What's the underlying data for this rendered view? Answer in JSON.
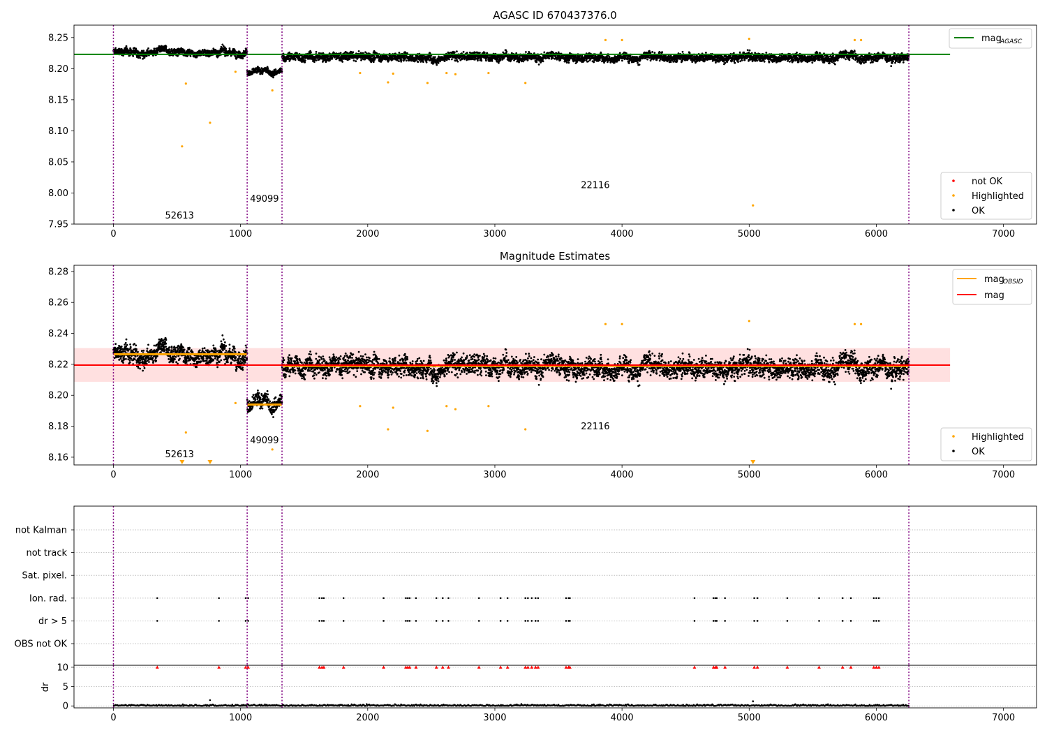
{
  "figure": {
    "ax1_title": "AGASC ID 670437376.0",
    "ax2_title": "Magnitude Estimates"
  },
  "colors": {
    "ok": "#000000",
    "highlighted": "#ffa500",
    "not_ok": "#ff0000",
    "agasc_line": "#008000",
    "obsid_line": "#ffa500",
    "mag_line": "#ff0000",
    "band_fill": "#ffcccc",
    "obs_boundary": "#800080"
  },
  "chart_data": [
    {
      "type": "scatter",
      "xlim": [
        -310,
        7260
      ],
      "ylim": [
        7.95,
        8.27
      ],
      "x_ticks": [
        0,
        1000,
        2000,
        3000,
        4000,
        5000,
        6000,
        7000
      ],
      "y_ticks": [
        "7.95",
        "8.00",
        "8.05",
        "8.10",
        "8.15",
        "8.20",
        "8.25"
      ],
      "legend_upper": [
        {
          "label": "mag",
          "sub": "AGASC",
          "marker": "line",
          "color": "#008000"
        }
      ],
      "legend_lower": [
        {
          "label": "not OK",
          "color": "#ff0000"
        },
        {
          "label": "Highlighted",
          "color": "#ffa500"
        },
        {
          "label": "OK",
          "color": "#000000"
        }
      ],
      "hlines": [
        {
          "name": "mag_AGASC",
          "y": 8.223,
          "x_from": -310,
          "x_to": 6580,
          "color": "#008000"
        }
      ],
      "obs_boundaries": [
        0,
        1052,
        1326,
        6256
      ],
      "obs_labels": [
        {
          "text": "52613",
          "x": 520,
          "y": 7.959
        },
        {
          "text": "49099",
          "x": 1188,
          "y": 7.986
        },
        {
          "text": "22116",
          "x": 3790,
          "y": 8.008
        }
      ],
      "ok_segments": [
        {
          "x_from": 0,
          "x_to": 1052,
          "mean": 8.227,
          "spread": 0.007
        },
        {
          "x_from": 1052,
          "x_to": 1326,
          "mean": 8.194,
          "spread": 0.006
        },
        {
          "x_from": 1326,
          "x_to": 6256,
          "mean": 8.219,
          "spread": 0.008
        }
      ],
      "highlighted_points": [
        [
          540,
          8.075
        ],
        [
          570,
          8.176
        ],
        [
          760,
          8.113
        ],
        [
          960,
          8.195
        ],
        [
          1250,
          8.165
        ],
        [
          1940,
          8.193
        ],
        [
          2160,
          8.178
        ],
        [
          2200,
          8.192
        ],
        [
          2470,
          8.177
        ],
        [
          2620,
          8.193
        ],
        [
          2690,
          8.191
        ],
        [
          2950,
          8.193
        ],
        [
          3240,
          8.177
        ],
        [
          3870,
          8.246
        ],
        [
          4000,
          8.246
        ],
        [
          5000,
          8.248
        ],
        [
          5030,
          7.98
        ],
        [
          5830,
          8.246
        ],
        [
          5880,
          8.246
        ]
      ]
    },
    {
      "type": "scatter",
      "xlim": [
        -310,
        7260
      ],
      "ylim": [
        8.155,
        8.284
      ],
      "x_ticks": [
        0,
        1000,
        2000,
        3000,
        4000,
        5000,
        6000,
        7000
      ],
      "y_ticks": [
        "8.16",
        "8.18",
        "8.20",
        "8.22",
        "8.24",
        "8.26",
        "8.28"
      ],
      "legend_upper": [
        {
          "label": "mag",
          "sub": "OBSID",
          "marker": "line",
          "color": "#ffa500"
        },
        {
          "label": "mag",
          "sub": "",
          "marker": "line",
          "color": "#ff0000"
        }
      ],
      "legend_lower": [
        {
          "label": "Highlighted",
          "color": "#ffa500"
        },
        {
          "label": "OK",
          "color": "#000000"
        }
      ],
      "band": {
        "y_from": 8.2087,
        "y_to": 8.2305,
        "x_from": -310,
        "x_to": 6580
      },
      "mag_line": {
        "y": 8.2195,
        "x_from": -310,
        "x_to": 6580
      },
      "obsid_mags": [
        {
          "x_from": 0,
          "x_to": 1052,
          "y": 8.2265
        },
        {
          "x_from": 1052,
          "x_to": 1326,
          "y": 8.194
        },
        {
          "x_from": 1326,
          "x_to": 6256,
          "y": 8.219
        }
      ],
      "obs_boundaries": [
        0,
        1052,
        1326,
        6256
      ],
      "obs_labels": [
        {
          "text": "52613",
          "x": 520,
          "y": 8.16
        },
        {
          "text": "49099",
          "x": 1188,
          "y": 8.169
        },
        {
          "text": "22116",
          "x": 3790,
          "y": 8.178
        }
      ],
      "highlighted_points": [
        [
          570,
          8.176
        ],
        [
          960,
          8.195
        ],
        [
          1250,
          8.165
        ],
        [
          1940,
          8.193
        ],
        [
          2160,
          8.178
        ],
        [
          2200,
          8.192
        ],
        [
          2470,
          8.177
        ],
        [
          2620,
          8.193
        ],
        [
          2690,
          8.191
        ],
        [
          2950,
          8.193
        ],
        [
          3240,
          8.178
        ],
        [
          3870,
          8.246
        ],
        [
          4000,
          8.246
        ],
        [
          5000,
          8.248
        ],
        [
          5830,
          8.246
        ],
        [
          5880,
          8.246
        ]
      ],
      "offscale_markers": [
        540,
        760,
        5030
      ]
    },
    {
      "type": "scatter",
      "xlim": [
        -310,
        7260
      ],
      "categories": [
        "not Kalman",
        "not track",
        "Sat. pixel.",
        "Ion. rad.",
        "dr > 5",
        "OBS not OK"
      ],
      "flag_events": [
        345,
        830,
        1040,
        1060,
        1620,
        1640,
        1655,
        1810,
        2125,
        2300,
        2315,
        2330,
        2380,
        2540,
        2590,
        2635,
        2875,
        3045,
        3100,
        3240,
        3260,
        3290,
        3320,
        3340,
        3560,
        3580,
        3590,
        4570,
        4720,
        4735,
        4745,
        4810,
        5040,
        5065,
        5300,
        5550,
        5735,
        5800,
        5980,
        6000,
        6020
      ],
      "obs_boundaries": [
        0,
        1052,
        1326,
        6256
      ]
    },
    {
      "type": "scatter",
      "xlim": [
        -310,
        7260
      ],
      "ylim": [
        -0.5,
        10.5
      ],
      "ylabel": "dr",
      "y_ticks": [
        "0",
        "5",
        "10"
      ],
      "clipped_value": 10,
      "obs_boundaries": [
        0,
        1052,
        1326,
        6256
      ]
    }
  ]
}
